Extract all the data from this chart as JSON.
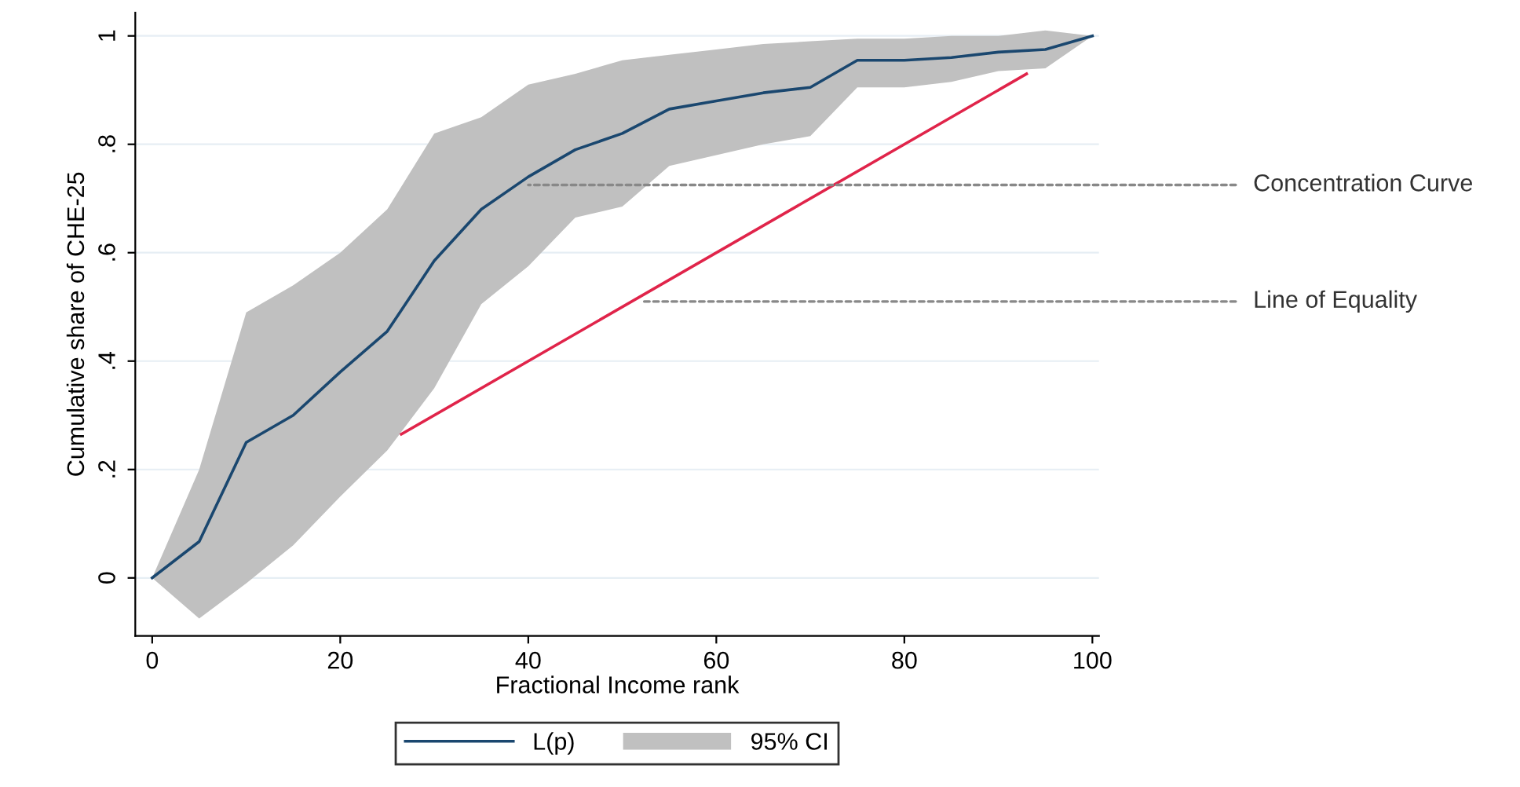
{
  "chart_data": {
    "type": "line",
    "xlabel": "Fractional Income rank",
    "ylabel": "Cumulative share of CHE-25",
    "x": [
      0,
      5,
      10,
      15,
      20,
      25,
      30,
      35,
      40,
      45,
      50,
      55,
      60,
      65,
      70,
      75,
      80,
      85,
      90,
      95,
      100
    ],
    "series": [
      {
        "name": "L(p)",
        "color": "#1a476f",
        "values": [
          0,
          0.067,
          0.25,
          0.3,
          0.38,
          0.455,
          0.585,
          0.68,
          0.74,
          0.79,
          0.82,
          0.865,
          0.88,
          0.895,
          0.905,
          0.955,
          0.955,
          0.96,
          0.97,
          0.975,
          1
        ],
        "upper": [
          0,
          0.2,
          0.49,
          0.54,
          0.6,
          0.68,
          0.82,
          0.85,
          0.91,
          0.93,
          0.955,
          0.965,
          0.975,
          0.985,
          0.99,
          0.995,
          0.995,
          1.0,
          1.0,
          1.01,
          1
        ],
        "lower": [
          0,
          -0.075,
          -0.01,
          0.06,
          0.15,
          0.235,
          0.35,
          0.505,
          0.575,
          0.665,
          0.685,
          0.76,
          0.78,
          0.8,
          0.815,
          0.905,
          0.905,
          0.915,
          0.935,
          0.94,
          1
        ]
      },
      {
        "color": "#e0244a",
        "x": [
          26.5,
          93
        ],
        "values": [
          0.265,
          0.93
        ]
      }
    ],
    "annotations": [
      "95% CI",
      {
        "text": "Concentration Curve",
        "x": 40,
        "y": 0.725
      },
      {
        "text": "Line of Equality",
        "x": 52,
        "y": 0.51
      }
    ],
    "xlim": [
      -1.8,
      100.7
    ],
    "ylim": [
      -0.107,
      1.043
    ],
    "xticks": [
      0,
      20,
      40,
      60,
      80,
      100
    ],
    "yticks": [
      {
        "value": 0,
        "label": "0"
      },
      {
        "value": 0.2,
        "label": ".2"
      },
      {
        "value": 0.4,
        "label": ".4"
      },
      {
        "value": 0.6,
        "label": ".6"
      },
      {
        "value": 0.8,
        "label": ".8"
      },
      {
        "value": 1,
        "label": "1"
      }
    ],
    "grid": "y",
    "legend": "bottom"
  }
}
